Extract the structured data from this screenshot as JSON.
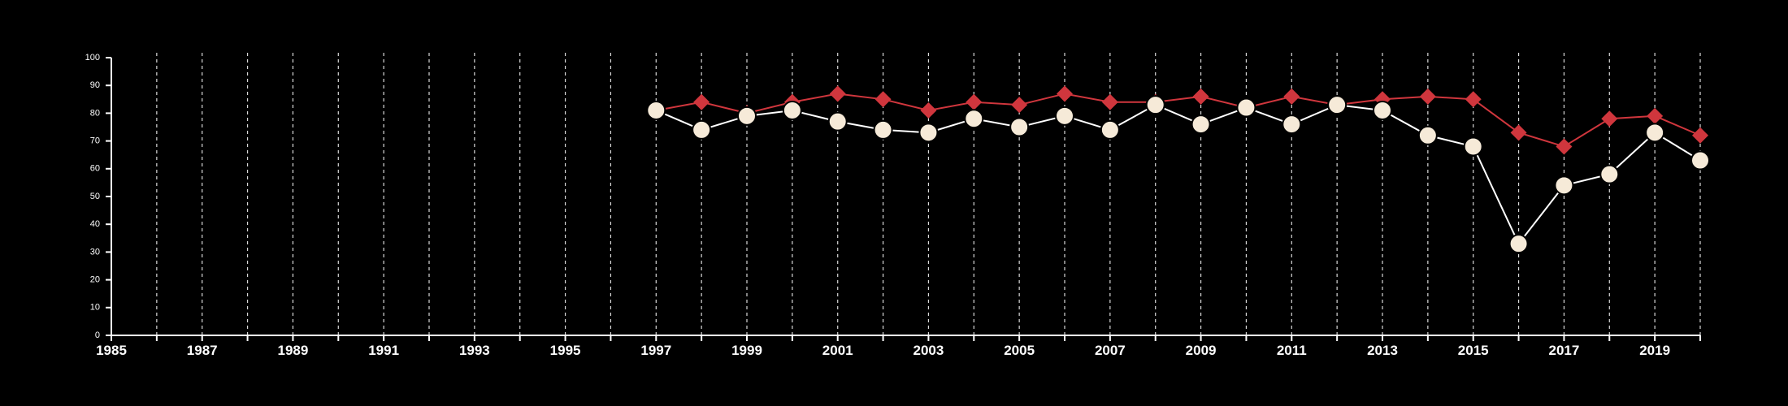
{
  "chart_data": {
    "type": "line",
    "title": "",
    "xlabel": "",
    "ylabel": "",
    "xlim": [
      1985,
      2020
    ],
    "ylim": [
      0,
      100
    ],
    "grid": {
      "x": true,
      "y": false,
      "style": "dashed"
    },
    "x_ticks": [
      1985,
      1986,
      1987,
      1988,
      1989,
      1990,
      1991,
      1992,
      1993,
      1994,
      1995,
      1996,
      1997,
      1998,
      1999,
      2000,
      2001,
      2002,
      2003,
      2004,
      2005,
      2006,
      2007,
      2008,
      2009,
      2010,
      2011,
      2012,
      2013,
      2014,
      2015,
      2016,
      2017,
      2018,
      2019,
      2020
    ],
    "x_tick_labels": [
      "1985",
      "1987",
      "1989",
      "1991",
      "1993",
      "1995",
      "1997",
      "1999",
      "2001",
      "2003",
      "2005",
      "2007",
      "2009",
      "2011",
      "2013",
      "2015",
      "2017",
      "2019"
    ],
    "y_ticks": [
      0,
      10,
      20,
      30,
      40,
      50,
      60,
      70,
      80,
      90,
      100
    ],
    "y_tick_labels": [
      "0",
      "10",
      "20",
      "30",
      "40",
      "50",
      "60",
      "70",
      "80",
      "90",
      "100"
    ],
    "x": [
      1997,
      1998,
      1999,
      2000,
      2001,
      2002,
      2003,
      2004,
      2005,
      2006,
      2007,
      2008,
      2009,
      2010,
      2011,
      2012,
      2013,
      2014,
      2015,
      2016,
      2017,
      2018,
      2019,
      2020
    ],
    "series": [
      {
        "marker": "diamond",
        "color": "#d0363d",
        "values": [
          81,
          84,
          80,
          84,
          87,
          85,
          81,
          84,
          83,
          87,
          84,
          84,
          86,
          82,
          86,
          83,
          85,
          86,
          85,
          73,
          68,
          78,
          79,
          72
        ]
      },
      {
        "marker": "circle",
        "color": "#f6ead8",
        "line_color": "#ffffff",
        "values": [
          81,
          74,
          79,
          81,
          77,
          74,
          73,
          78,
          75,
          79,
          74,
          83,
          76,
          82,
          76,
          83,
          81,
          72,
          68,
          33,
          54,
          58,
          73,
          63
        ]
      }
    ]
  }
}
